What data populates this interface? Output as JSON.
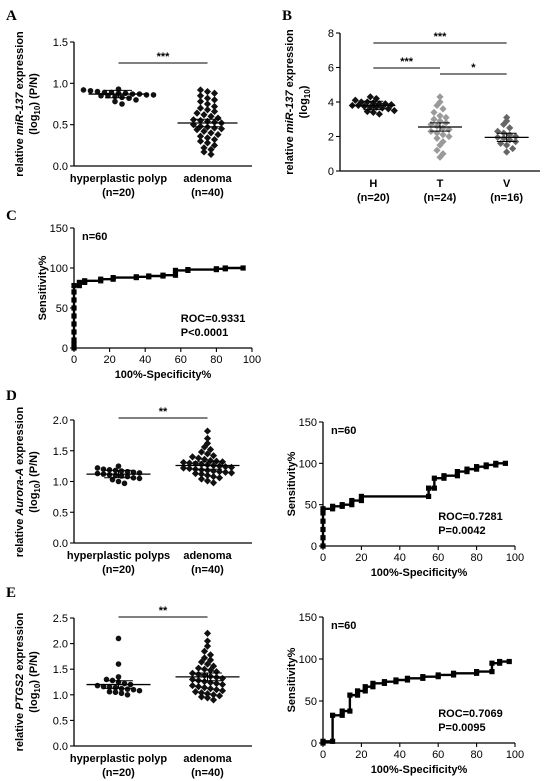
{
  "chart_data": [
    {
      "panel": "A",
      "type": "scatter",
      "ylabel": "relative miR-137 expression (log10) (P/N)",
      "ylim": [
        0.0,
        1.5
      ],
      "yticks": [
        "0.0",
        "0.5",
        "1.0",
        "1.5"
      ],
      "categories": [
        {
          "name": "hyperplastic polyp",
          "n": "(n=20)",
          "mean": 0.87,
          "color": "#111111",
          "marker": "circle",
          "values": [
            0.93,
            0.92,
            0.91,
            0.9,
            0.89,
            0.89,
            0.88,
            0.88,
            0.87,
            0.87,
            0.86,
            0.86,
            0.85,
            0.85,
            0.84,
            0.83,
            0.82,
            0.8,
            0.78,
            0.75
          ]
        },
        {
          "name": "adenoma",
          "n": "(n=40)",
          "mean": 0.52,
          "color": "#111111",
          "marker": "diamond",
          "values": [
            0.92,
            0.9,
            0.88,
            0.85,
            0.82,
            0.8,
            0.78,
            0.75,
            0.72,
            0.7,
            0.68,
            0.66,
            0.64,
            0.62,
            0.6,
            0.58,
            0.56,
            0.55,
            0.54,
            0.53,
            0.52,
            0.5,
            0.48,
            0.47,
            0.46,
            0.45,
            0.44,
            0.42,
            0.4,
            0.38,
            0.36,
            0.34,
            0.32,
            0.3,
            0.28,
            0.25,
            0.22,
            0.2,
            0.17,
            0.14
          ]
        }
      ],
      "significance": [
        {
          "from": 0,
          "to": 1,
          "label": "***"
        }
      ]
    },
    {
      "panel": "B",
      "type": "scatter",
      "ylabel": "relative miR-137 expression (log10)",
      "ylim": [
        0,
        8
      ],
      "yticks": [
        "0",
        "2",
        "4",
        "6",
        "8"
      ],
      "categories": [
        {
          "name": "H",
          "n": "(n=20)",
          "mean": 3.8,
          "color": "#111111",
          "marker": "diamond",
          "values": [
            4.3,
            4.2,
            4.1,
            4.0,
            4.0,
            3.95,
            3.9,
            3.9,
            3.85,
            3.8,
            3.8,
            3.75,
            3.7,
            3.7,
            3.65,
            3.6,
            3.5,
            3.45,
            3.4,
            3.3
          ]
        },
        {
          "name": "T",
          "n": "(n=24)",
          "mean": 2.55,
          "color": "#9a9a9a",
          "marker": "diamond",
          "values": [
            4.3,
            4.0,
            3.8,
            3.6,
            3.4,
            3.2,
            3.1,
            3.0,
            2.9,
            2.8,
            2.7,
            2.6,
            2.5,
            2.4,
            2.3,
            2.2,
            2.1,
            2.0,
            1.9,
            1.7,
            1.5,
            1.2,
            1.0,
            0.8
          ]
        },
        {
          "name": "V",
          "n": "(n=16)",
          "mean": 1.95,
          "color": "#666666",
          "marker": "diamond",
          "values": [
            3.1,
            2.9,
            2.7,
            2.5,
            2.3,
            2.2,
            2.1,
            2.0,
            1.95,
            1.9,
            1.8,
            1.7,
            1.6,
            1.5,
            1.3,
            1.1
          ]
        }
      ],
      "significance": [
        {
          "from": 0,
          "to": 2,
          "label": "***"
        },
        {
          "from": 0,
          "to": 1,
          "label": "***"
        },
        {
          "from": 1,
          "to": 2,
          "label": "*"
        }
      ]
    },
    {
      "panel": "C",
      "type": "line",
      "step": true,
      "annotation_n": "n=60",
      "xlabel": "100%-Specificity%",
      "ylabel": "Sensitivity%",
      "xlim": [
        0,
        100
      ],
      "ylim": [
        0,
        150
      ],
      "xticks": [
        "0",
        "20",
        "40",
        "60",
        "80",
        "100"
      ],
      "yticks": [
        "0",
        "50",
        "100",
        "150"
      ],
      "roc": "ROC=0.9331",
      "p": "P<0.0001",
      "points": [
        [
          0,
          0
        ],
        [
          0,
          5
        ],
        [
          0,
          10
        ],
        [
          0,
          20
        ],
        [
          0,
          30
        ],
        [
          0,
          40
        ],
        [
          0,
          50
        ],
        [
          0,
          60
        ],
        [
          0,
          70
        ],
        [
          0,
          78
        ],
        [
          3,
          78
        ],
        [
          3,
          82
        ],
        [
          6,
          82
        ],
        [
          6,
          84
        ],
        [
          15,
          84
        ],
        [
          15,
          86
        ],
        [
          22,
          86
        ],
        [
          22,
          88
        ],
        [
          35,
          88
        ],
        [
          35,
          89
        ],
        [
          42,
          89
        ],
        [
          42,
          90
        ],
        [
          50,
          90
        ],
        [
          50,
          91
        ],
        [
          57,
          91
        ],
        [
          57,
          97
        ],
        [
          64,
          97
        ],
        [
          64,
          98
        ],
        [
          80,
          98
        ],
        [
          80,
          99
        ],
        [
          85,
          99
        ],
        [
          85,
          100
        ],
        [
          95,
          100
        ]
      ]
    },
    {
      "panel": "D",
      "type": "scatter",
      "ylabel": "relative Aurora-A expression (log10) (P/N)",
      "ylim": [
        0.0,
        2.0
      ],
      "yticks": [
        "0.0",
        "0.5",
        "1.0",
        "1.5",
        "2.0"
      ],
      "categories": [
        {
          "name": "hyperplastic polyps",
          "n": "(n=20)",
          "mean": 1.12,
          "color": "#111111",
          "marker": "circle",
          "values": [
            1.25,
            1.22,
            1.2,
            1.19,
            1.18,
            1.17,
            1.16,
            1.15,
            1.14,
            1.13,
            1.12,
            1.11,
            1.1,
            1.09,
            1.08,
            1.06,
            1.05,
            1.03,
            1.0,
            0.97
          ]
        },
        {
          "name": "adenoma",
          "n": "(n=40)",
          "mean": 1.26,
          "color": "#111111",
          "marker": "diamond",
          "values": [
            1.82,
            1.7,
            1.62,
            1.56,
            1.52,
            1.48,
            1.45,
            1.42,
            1.4,
            1.38,
            1.36,
            1.34,
            1.33,
            1.32,
            1.31,
            1.3,
            1.29,
            1.28,
            1.27,
            1.26,
            1.25,
            1.24,
            1.23,
            1.22,
            1.21,
            1.2,
            1.19,
            1.18,
            1.17,
            1.16,
            1.15,
            1.14,
            1.13,
            1.12,
            1.1,
            1.08,
            1.06,
            1.04,
            1.01,
            0.98
          ]
        }
      ],
      "significance": [
        {
          "from": 0,
          "to": 1,
          "label": "**"
        }
      ]
    },
    {
      "panel": "D-roc",
      "type": "line",
      "step": true,
      "annotation_n": "n=60",
      "xlabel": "100%-Specificity%",
      "ylabel": "Sensitivity%",
      "xlim": [
        0,
        100
      ],
      "ylim": [
        0,
        150
      ],
      "xticks": [
        "0",
        "20",
        "40",
        "60",
        "80",
        "100"
      ],
      "yticks": [
        "0",
        "50",
        "100",
        "150"
      ],
      "roc": "ROC=0.7281",
      "p": "P=0.0042",
      "points": [
        [
          0,
          0
        ],
        [
          0,
          10
        ],
        [
          0,
          20
        ],
        [
          0,
          30
        ],
        [
          0,
          40
        ],
        [
          0,
          45
        ],
        [
          5,
          45
        ],
        [
          5,
          48
        ],
        [
          10,
          48
        ],
        [
          10,
          50
        ],
        [
          15,
          50
        ],
        [
          15,
          55
        ],
        [
          20,
          55
        ],
        [
          20,
          60
        ],
        [
          55,
          60
        ],
        [
          55,
          70
        ],
        [
          58,
          70
        ],
        [
          58,
          82
        ],
        [
          63,
          82
        ],
        [
          63,
          85
        ],
        [
          70,
          85
        ],
        [
          70,
          90
        ],
        [
          75,
          90
        ],
        [
          75,
          93
        ],
        [
          80,
          93
        ],
        [
          80,
          96
        ],
        [
          85,
          96
        ],
        [
          85,
          98
        ],
        [
          90,
          98
        ],
        [
          90,
          100
        ],
        [
          95,
          100
        ]
      ]
    },
    {
      "panel": "E",
      "type": "scatter",
      "ylabel": "relative PTGS2 expression (log10) (P/N)",
      "ylim": [
        0.0,
        2.5
      ],
      "yticks": [
        "0.0",
        "0.5",
        "1.0",
        "1.5",
        "2.0",
        "2.5"
      ],
      "categories": [
        {
          "name": "hyperplastic polyp",
          "n": "(n=20)",
          "mean": 1.2,
          "color": "#111111",
          "marker": "circle",
          "values": [
            2.1,
            1.6,
            1.35,
            1.3,
            1.28,
            1.25,
            1.22,
            1.2,
            1.18,
            1.16,
            1.15,
            1.14,
            1.12,
            1.11,
            1.1,
            1.08,
            1.06,
            1.05,
            1.03,
            1.0
          ]
        },
        {
          "name": "adenoma",
          "n": "(n=40)",
          "mean": 1.35,
          "color": "#111111",
          "marker": "diamond",
          "values": [
            2.2,
            2.05,
            1.95,
            1.85,
            1.78,
            1.72,
            1.68,
            1.64,
            1.6,
            1.56,
            1.52,
            1.5,
            1.48,
            1.45,
            1.42,
            1.4,
            1.38,
            1.36,
            1.34,
            1.32,
            1.3,
            1.28,
            1.26,
            1.24,
            1.22,
            1.2,
            1.18,
            1.16,
            1.14,
            1.12,
            1.1,
            1.08,
            1.06,
            1.04,
            1.02,
            1.0,
            0.98,
            0.96,
            0.94,
            0.9
          ]
        }
      ],
      "significance": [
        {
          "from": 0,
          "to": 1,
          "label": "**"
        }
      ]
    },
    {
      "panel": "E-roc",
      "type": "line",
      "step": true,
      "annotation_n": "n=60",
      "xlabel": "100%-Specificity%",
      "ylabel": "Sensitivity%",
      "xlim": [
        0,
        100
      ],
      "ylim": [
        0,
        150
      ],
      "xticks": [
        "0",
        "20",
        "40",
        "60",
        "80",
        "100"
      ],
      "yticks": [
        "0",
        "50",
        "100",
        "150"
      ],
      "roc": "ROC=0.7069",
      "p": "P=0.0095",
      "points": [
        [
          0,
          0
        ],
        [
          0,
          2
        ],
        [
          5,
          2
        ],
        [
          5,
          33
        ],
        [
          10,
          33
        ],
        [
          10,
          38
        ],
        [
          14,
          38
        ],
        [
          14,
          57
        ],
        [
          18,
          57
        ],
        [
          18,
          62
        ],
        [
          22,
          62
        ],
        [
          22,
          67
        ],
        [
          26,
          67
        ],
        [
          26,
          71
        ],
        [
          32,
          71
        ],
        [
          32,
          73
        ],
        [
          38,
          73
        ],
        [
          38,
          75
        ],
        [
          44,
          75
        ],
        [
          44,
          77
        ],
        [
          52,
          77
        ],
        [
          52,
          79
        ],
        [
          60,
          79
        ],
        [
          60,
          81
        ],
        [
          68,
          81
        ],
        [
          68,
          83
        ],
        [
          80,
          83
        ],
        [
          80,
          85
        ],
        [
          88,
          85
        ],
        [
          88,
          95
        ],
        [
          92,
          95
        ],
        [
          92,
          97
        ],
        [
          97,
          97
        ]
      ]
    }
  ],
  "labels": {
    "A": "A",
    "B": "B",
    "C": "C",
    "D": "D",
    "E": "E",
    "A_yl1": "relative miR-137 expression",
    "A_yl2": "(log10) (P/N)",
    "B_yl1": "relative miR-137 expression",
    "B_yl2": "(log10)",
    "D_yl1": "relative Aurora-A expression",
    "D_yl2": "(log10) (P/N)",
    "E_yl1": "relative PTGS2 expression",
    "E_yl2": "(log10) (P/N)"
  }
}
